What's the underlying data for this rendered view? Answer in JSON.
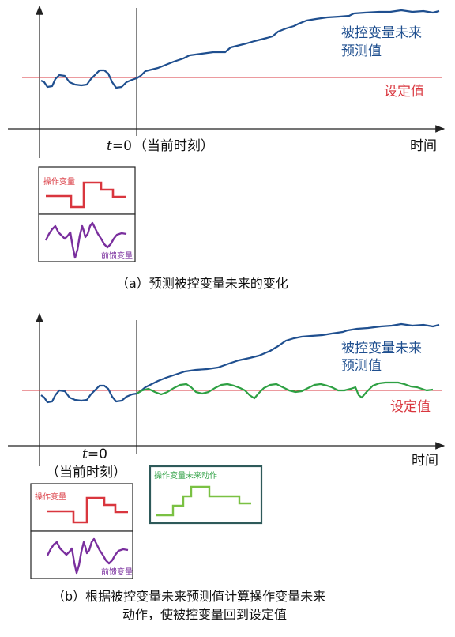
{
  "panel_a": {
    "predicted_label_line1": "被控变量未来",
    "predicted_label_line2": "预测值",
    "setpoint_label": "设定值",
    "t_var": "t",
    "t_eq": "=0",
    "now_label": "（当前时刻）",
    "time_label": "时间",
    "mv_label": "操作变量",
    "dv_label": "前馈变量",
    "caption": "（a）预测被控变量未来的变化"
  },
  "panel_b": {
    "predicted_label_line1": "被控变量未来",
    "predicted_label_line2": "预测值",
    "setpoint_label": "设定值",
    "t_var": "t",
    "t_eq": "=0",
    "now_label": "（当前时刻）",
    "time_label": "时间",
    "mv_label": "操作变量",
    "dv_label": "前馈变量",
    "future_mv_label": "操作变量未来动作",
    "caption_line1": "（b）根据被控变量未来预测值计算操作变量未来",
    "caption_line2": "动作，使被控变量回到设定值"
  },
  "colors": {
    "predicted": "#1f4f8f",
    "setpoint": "#d9363e",
    "manipulated": "#d9363e",
    "feedforward": "#7a2f9e",
    "future_action": "#2ea043",
    "future_box": "#2e5a5a",
    "axis": "#222222"
  }
}
